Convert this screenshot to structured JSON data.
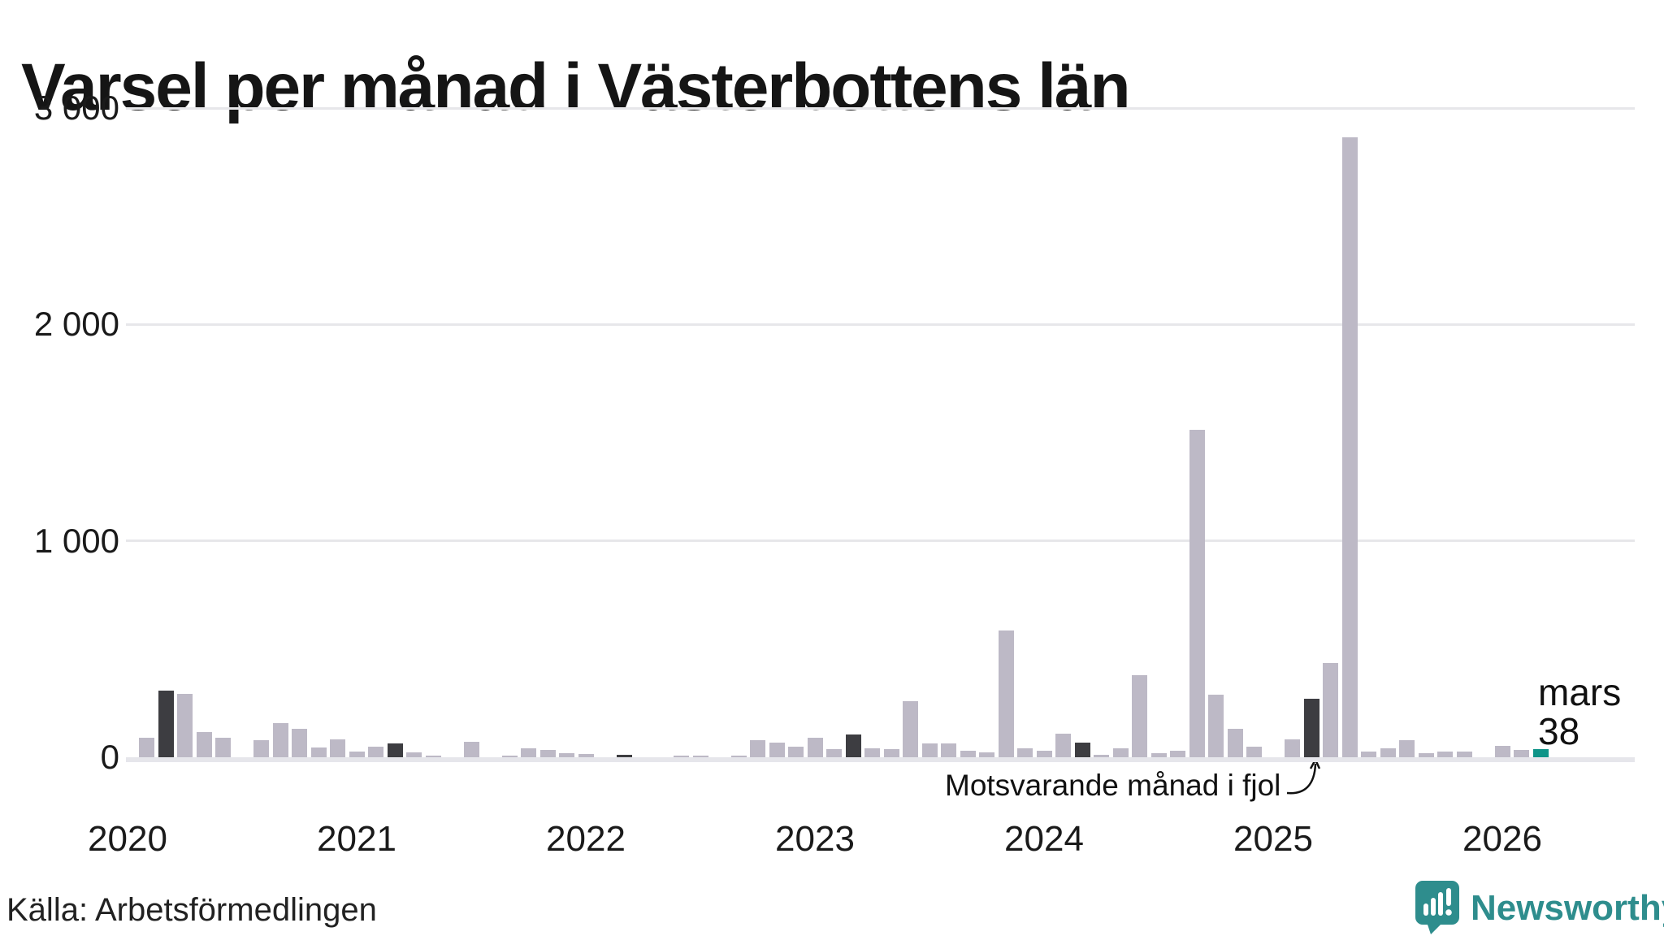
{
  "source": {
    "text": "Källa: Arbetsförmedlingen"
  },
  "logo": {
    "text": "Newsworthy"
  },
  "colors": {
    "bar": "#bdb9c6",
    "fjol": "#3d3d41",
    "current": "#0e9488",
    "grid": "#e7e7ea",
    "baseline": "#e6e6eb",
    "logo": "#2e8d8d"
  },
  "chart_data": {
    "type": "bar",
    "title": "Varsel per månad i Västerbottens län",
    "xlabel": "",
    "ylabel": "",
    "ylim": [
      0,
      3000
    ],
    "grid": true,
    "legend": null,
    "annotation": "Motsvarande månad i fjol",
    "current_point_label": [
      "mars",
      "38"
    ],
    "y_ticks": [
      {
        "value": 0,
        "label": "0"
      },
      {
        "value": 1000,
        "label": "1 000"
      },
      {
        "value": 2000,
        "label": "2 000"
      },
      {
        "value": 3000,
        "label": "3 000"
      }
    ],
    "x_year_ticks": [
      "2020",
      "2021",
      "2022",
      "2023",
      "2024",
      "2025",
      "2026"
    ],
    "months": [
      {
        "month": "2020-01",
        "value": 0
      },
      {
        "month": "2020-02",
        "value": 91
      },
      {
        "month": "2020-03",
        "value": 309,
        "kind": "fjol"
      },
      {
        "month": "2020-04",
        "value": 293
      },
      {
        "month": "2020-05",
        "value": 117
      },
      {
        "month": "2020-06",
        "value": 90
      },
      {
        "month": "2020-07",
        "value": 0
      },
      {
        "month": "2020-08",
        "value": 79
      },
      {
        "month": "2020-09",
        "value": 158
      },
      {
        "month": "2020-10",
        "value": 132
      },
      {
        "month": "2020-11",
        "value": 45
      },
      {
        "month": "2020-12",
        "value": 84
      },
      {
        "month": "2021-01",
        "value": 27
      },
      {
        "month": "2021-02",
        "value": 47
      },
      {
        "month": "2021-03",
        "value": 63,
        "kind": "fjol"
      },
      {
        "month": "2021-04",
        "value": 23
      },
      {
        "month": "2021-05",
        "value": 8
      },
      {
        "month": "2021-06",
        "value": 0
      },
      {
        "month": "2021-07",
        "value": 72
      },
      {
        "month": "2021-08",
        "value": 0
      },
      {
        "month": "2021-09",
        "value": 8
      },
      {
        "month": "2021-10",
        "value": 41
      },
      {
        "month": "2021-11",
        "value": 33
      },
      {
        "month": "2021-12",
        "value": 19
      },
      {
        "month": "2022-01",
        "value": 15
      },
      {
        "month": "2022-02",
        "value": 0
      },
      {
        "month": "2022-03",
        "value": 13,
        "kind": "fjol"
      },
      {
        "month": "2022-04",
        "value": 0
      },
      {
        "month": "2022-05",
        "value": 0
      },
      {
        "month": "2022-06",
        "value": 9
      },
      {
        "month": "2022-07",
        "value": 6
      },
      {
        "month": "2022-08",
        "value": 0
      },
      {
        "month": "2022-09",
        "value": 9
      },
      {
        "month": "2022-10",
        "value": 78
      },
      {
        "month": "2022-11",
        "value": 68
      },
      {
        "month": "2022-12",
        "value": 50
      },
      {
        "month": "2023-01",
        "value": 90
      },
      {
        "month": "2023-02",
        "value": 38
      },
      {
        "month": "2023-03",
        "value": 105,
        "kind": "fjol"
      },
      {
        "month": "2023-04",
        "value": 43
      },
      {
        "month": "2023-05",
        "value": 39
      },
      {
        "month": "2023-06",
        "value": 259
      },
      {
        "month": "2023-07",
        "value": 65
      },
      {
        "month": "2023-08",
        "value": 65
      },
      {
        "month": "2023-09",
        "value": 31
      },
      {
        "month": "2023-10",
        "value": 21
      },
      {
        "month": "2023-11",
        "value": 584
      },
      {
        "month": "2023-12",
        "value": 43
      },
      {
        "month": "2024-01",
        "value": 31
      },
      {
        "month": "2024-02",
        "value": 109
      },
      {
        "month": "2024-03",
        "value": 68,
        "kind": "fjol"
      },
      {
        "month": "2024-04",
        "value": 10
      },
      {
        "month": "2024-05",
        "value": 40
      },
      {
        "month": "2024-06",
        "value": 378
      },
      {
        "month": "2024-07",
        "value": 19
      },
      {
        "month": "2024-08",
        "value": 30
      },
      {
        "month": "2024-09",
        "value": 1513
      },
      {
        "month": "2024-10",
        "value": 288
      },
      {
        "month": "2024-11",
        "value": 131
      },
      {
        "month": "2024-12",
        "value": 48
      },
      {
        "month": "2025-01",
        "value": 0
      },
      {
        "month": "2025-02",
        "value": 81
      },
      {
        "month": "2025-03",
        "value": 269,
        "kind": "fjol"
      },
      {
        "month": "2025-04",
        "value": 434
      },
      {
        "month": "2025-05",
        "value": 2865
      },
      {
        "month": "2025-06",
        "value": 25
      },
      {
        "month": "2025-07",
        "value": 42
      },
      {
        "month": "2025-08",
        "value": 79
      },
      {
        "month": "2025-09",
        "value": 19
      },
      {
        "month": "2025-10",
        "value": 28
      },
      {
        "month": "2025-11",
        "value": 28
      },
      {
        "month": "2025-12",
        "value": 0
      },
      {
        "month": "2026-01",
        "value": 53
      },
      {
        "month": "2026-02",
        "value": 35
      },
      {
        "month": "2026-03",
        "value": 38,
        "kind": "current"
      }
    ]
  }
}
